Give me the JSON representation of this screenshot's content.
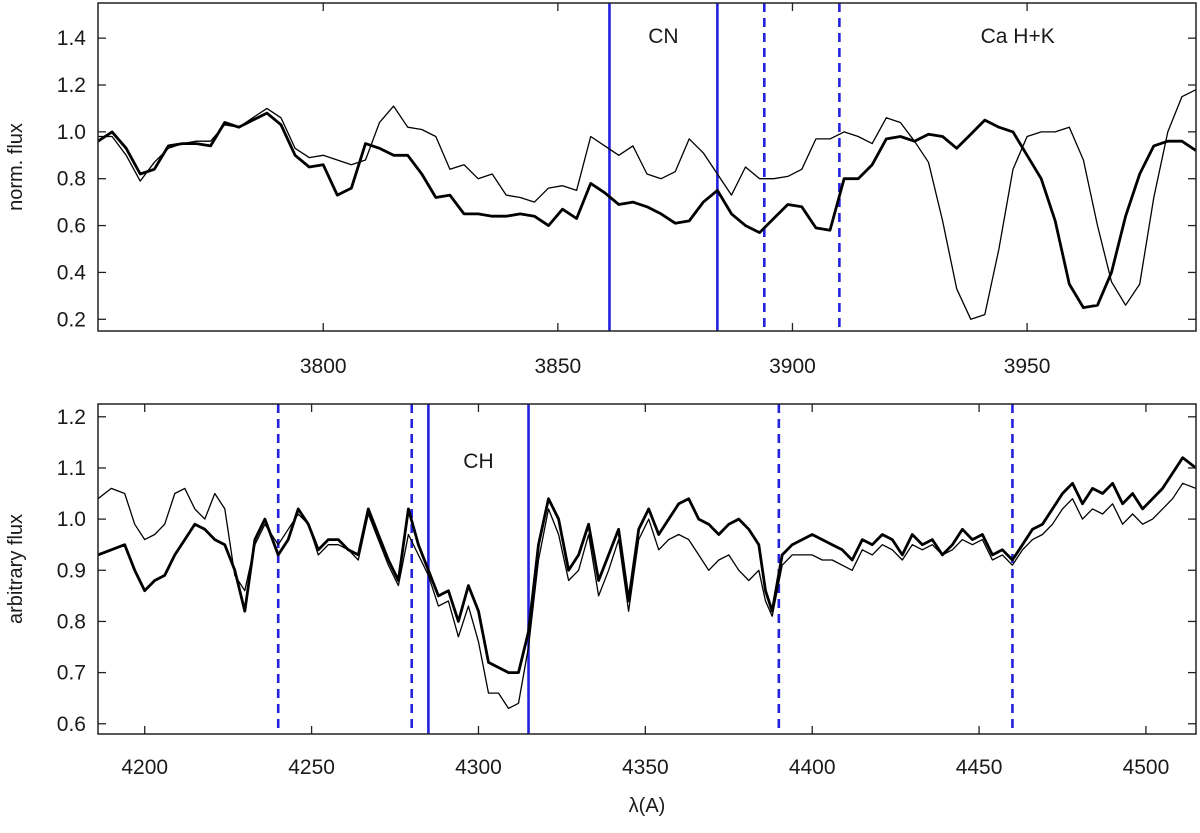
{
  "chart_data": [
    {
      "type": "line",
      "ylabel": "norm. flux",
      "xlabel": "",
      "xlim": [
        3752,
        3986
      ],
      "ylim": [
        0.15,
        1.55
      ],
      "xticks": [
        3800,
        3850,
        3900,
        3950
      ],
      "yticks": [
        0.2,
        0.4,
        0.6,
        0.8,
        1.0,
        1.2,
        1.4
      ],
      "ytick_labels": [
        "0.2",
        "0.4",
        "0.6",
        "0.8",
        "1.0",
        "1.2",
        "1.4"
      ],
      "grid": false,
      "band_lines": [
        {
          "x": 3861,
          "style": "solid"
        },
        {
          "x": 3884,
          "style": "solid"
        },
        {
          "x": 3894,
          "style": "dashed"
        },
        {
          "x": 3910,
          "style": "dashed"
        }
      ],
      "annotations": [
        {
          "text": "CN",
          "x": 3872.5,
          "y": 1.38
        },
        {
          "text": "Ca H+K",
          "x": 3948,
          "y": 1.38
        }
      ],
      "series": [
        {
          "style": "thick",
          "x": [
            3752,
            3755,
            3758,
            3761,
            3764,
            3767,
            3770,
            3773,
            3776,
            3779,
            3782,
            3785,
            3788,
            3791,
            3794,
            3797,
            3800,
            3803,
            3806,
            3809,
            3812,
            3815,
            3818,
            3821,
            3824,
            3827,
            3830,
            3833,
            3836,
            3839,
            3842,
            3845,
            3848,
            3851,
            3854,
            3857,
            3860,
            3863,
            3866,
            3869,
            3872,
            3875,
            3878,
            3881,
            3884,
            3887,
            3890,
            3893,
            3896,
            3899,
            3902,
            3905,
            3908,
            3911,
            3914,
            3917,
            3920,
            3923,
            3926,
            3929,
            3932,
            3935,
            3938,
            3941,
            3944,
            3947,
            3950,
            3953,
            3956,
            3959,
            3962,
            3965,
            3968,
            3971,
            3974,
            3977,
            3980,
            3983,
            3986
          ],
          "y": [
            0.96,
            1.0,
            0.93,
            0.82,
            0.84,
            0.94,
            0.95,
            0.95,
            0.94,
            1.04,
            1.02,
            1.05,
            1.08,
            1.03,
            0.9,
            0.85,
            0.86,
            0.73,
            0.76,
            0.95,
            0.93,
            0.9,
            0.9,
            0.82,
            0.72,
            0.73,
            0.65,
            0.65,
            0.64,
            0.64,
            0.65,
            0.64,
            0.6,
            0.67,
            0.63,
            0.78,
            0.74,
            0.69,
            0.7,
            0.68,
            0.65,
            0.61,
            0.62,
            0.7,
            0.75,
            0.65,
            0.6,
            0.57,
            0.63,
            0.69,
            0.68,
            0.59,
            0.58,
            0.8,
            0.8,
            0.86,
            0.97,
            0.98,
            0.96,
            0.99,
            0.98,
            0.93,
            0.99,
            1.05,
            1.02,
            1.0,
            0.9,
            0.8,
            0.62,
            0.35,
            0.25,
            0.26,
            0.4,
            0.64,
            0.82,
            0.94,
            0.96,
            0.96,
            0.92
          ],
          "x_fix_note": ""
        },
        {
          "style": "thin",
          "x": [
            3752,
            3755,
            3758,
            3761,
            3764,
            3767,
            3770,
            3773,
            3776,
            3779,
            3782,
            3785,
            3788,
            3791,
            3794,
            3797,
            3800,
            3803,
            3806,
            3809,
            3812,
            3815,
            3818,
            3821,
            3824,
            3827,
            3830,
            3833,
            3836,
            3839,
            3842,
            3845,
            3848,
            3851,
            3854,
            3857,
            3860,
            3863,
            3866,
            3869,
            3872,
            3875,
            3878,
            3881,
            3884,
            3887,
            3890,
            3893,
            3896,
            3899,
            3902,
            3905,
            3908,
            3911,
            3914,
            3917,
            3920,
            3923,
            3926,
            3929,
            3932,
            3935,
            3938,
            3941,
            3944,
            3947,
            3950,
            3953,
            3956,
            3959,
            3962,
            3965,
            3968,
            3971,
            3974,
            3977,
            3980,
            3983,
            3986
          ],
          "y": [
            0.98,
            0.98,
            0.9,
            0.79,
            0.87,
            0.93,
            0.95,
            0.96,
            0.96,
            1.03,
            1.02,
            1.06,
            1.1,
            1.06,
            0.93,
            0.89,
            0.9,
            0.88,
            0.86,
            0.88,
            1.04,
            1.11,
            1.02,
            1.01,
            0.98,
            0.84,
            0.86,
            0.8,
            0.82,
            0.73,
            0.72,
            0.7,
            0.76,
            0.77,
            0.75,
            0.98,
            0.94,
            0.9,
            0.94,
            0.82,
            0.8,
            0.83,
            0.97,
            0.91,
            0.82,
            0.73,
            0.85,
            0.8,
            0.8,
            0.81,
            0.84,
            0.97,
            0.97,
            1.0,
            0.98,
            0.95,
            1.06,
            1.04,
            0.96,
            0.87,
            0.62,
            0.33,
            0.2,
            0.22,
            0.5,
            0.84,
            0.98,
            1.0,
            1.0,
            1.02,
            0.88,
            0.6,
            0.36,
            0.26,
            0.35,
            0.72,
            1.0,
            1.15,
            1.18
          ],
          "x_fix_note": ""
        }
      ]
    },
    {
      "type": "line",
      "ylabel": "arbitrary flux",
      "xlabel": "λ(A)",
      "xlim": [
        4186,
        4515
      ],
      "ylim": [
        0.58,
        1.225
      ],
      "xticks": [
        4200,
        4250,
        4300,
        4350,
        4400,
        4450,
        4500
      ],
      "yticks": [
        0.6,
        0.7,
        0.8,
        0.9,
        1.0,
        1.1,
        1.2
      ],
      "ytick_labels": [
        "0.6",
        "0.7",
        "0.8",
        "0.9",
        "1.0",
        "1.1",
        "1.2"
      ],
      "grid": false,
      "band_lines": [
        {
          "x": 4240,
          "style": "dashed"
        },
        {
          "x": 4280,
          "style": "dashed"
        },
        {
          "x": 4285,
          "style": "solid"
        },
        {
          "x": 4315,
          "style": "solid"
        },
        {
          "x": 4390,
          "style": "dashed"
        },
        {
          "x": 4460,
          "style": "dashed"
        }
      ],
      "annotations": [
        {
          "text": "CH",
          "x": 4300,
          "y": 1.1
        }
      ],
      "series": [
        {
          "style": "thick",
          "x": [
            4186,
            4190,
            4194,
            4197,
            4200,
            4203,
            4206,
            4209,
            4212,
            4215,
            4218,
            4221,
            4224,
            4227,
            4230,
            4233,
            4236,
            4240,
            4243,
            4246,
            4249,
            4252,
            4255,
            4258,
            4261,
            4264,
            4267,
            4270,
            4273,
            4276,
            4279,
            4282,
            4285,
            4288,
            4291,
            4294,
            4297,
            4300,
            4303,
            4306,
            4309,
            4312,
            4315,
            4318,
            4321,
            4324,
            4327,
            4330,
            4333,
            4336,
            4339,
            4342,
            4345,
            4348,
            4351,
            4354,
            4357,
            4360,
            4363,
            4366,
            4369,
            4372,
            4375,
            4378,
            4381,
            4384,
            4386,
            4388,
            4391,
            4394,
            4397,
            4400,
            4403,
            4406,
            4409,
            4412,
            4415,
            4418,
            4421,
            4424,
            4427,
            4430,
            4433,
            4436,
            4439,
            4442,
            4445,
            4448,
            4451,
            4454,
            4457,
            4460,
            4463,
            4466,
            4469,
            4472,
            4475,
            4478,
            4481,
            4484,
            4487,
            4490,
            4493,
            4496,
            4499,
            4502,
            4505,
            4508,
            4511,
            4515
          ],
          "y": [
            0.93,
            0.94,
            0.95,
            0.9,
            0.86,
            0.88,
            0.89,
            0.93,
            0.96,
            0.99,
            0.98,
            0.96,
            0.95,
            0.9,
            0.82,
            0.96,
            1.0,
            0.93,
            0.96,
            1.02,
            0.99,
            0.94,
            0.96,
            0.96,
            0.94,
            0.93,
            1.02,
            0.97,
            0.92,
            0.88,
            1.02,
            0.95,
            0.9,
            0.85,
            0.86,
            0.8,
            0.87,
            0.82,
            0.72,
            0.71,
            0.7,
            0.7,
            0.78,
            0.95,
            1.04,
            1.0,
            0.9,
            0.93,
            0.99,
            0.88,
            0.93,
            0.98,
            0.84,
            0.98,
            1.02,
            0.97,
            1.0,
            1.03,
            1.04,
            1.0,
            0.99,
            0.97,
            0.99,
            1.0,
            0.98,
            0.95,
            0.86,
            0.82,
            0.93,
            0.95,
            0.96,
            0.97,
            0.96,
            0.95,
            0.94,
            0.92,
            0.96,
            0.95,
            0.97,
            0.96,
            0.93,
            0.97,
            0.95,
            0.96,
            0.93,
            0.95,
            0.98,
            0.96,
            0.97,
            0.93,
            0.94,
            0.92,
            0.95,
            0.98,
            0.99,
            1.02,
            1.05,
            1.07,
            1.03,
            1.06,
            1.05,
            1.07,
            1.03,
            1.05,
            1.02,
            1.04,
            1.06,
            1.09,
            1.12,
            1.1
          ],
          "x_fix_note": ""
        },
        {
          "style": "thin",
          "x": [
            4186,
            4190,
            4194,
            4197,
            4200,
            4203,
            4206,
            4209,
            4212,
            4215,
            4218,
            4221,
            4224,
            4227,
            4230,
            4233,
            4236,
            4240,
            4243,
            4246,
            4249,
            4252,
            4255,
            4258,
            4261,
            4264,
            4267,
            4270,
            4273,
            4276,
            4279,
            4282,
            4285,
            4288,
            4291,
            4294,
            4297,
            4300,
            4303,
            4306,
            4309,
            4312,
            4315,
            4318,
            4321,
            4324,
            4327,
            4330,
            4333,
            4336,
            4339,
            4342,
            4345,
            4348,
            4351,
            4354,
            4357,
            4360,
            4363,
            4366,
            4369,
            4372,
            4375,
            4378,
            4381,
            4384,
            4386,
            4388,
            4391,
            4394,
            4397,
            4400,
            4403,
            4406,
            4409,
            4412,
            4415,
            4418,
            4421,
            4424,
            4427,
            4430,
            4433,
            4436,
            4439,
            4442,
            4445,
            4448,
            4451,
            4454,
            4457,
            4460,
            4463,
            4466,
            4469,
            4472,
            4475,
            4478,
            4481,
            4484,
            4487,
            4490,
            4493,
            4496,
            4499,
            4502,
            4505,
            4508,
            4511,
            4515
          ],
          "y": [
            1.04,
            1.06,
            1.05,
            0.99,
            0.96,
            0.97,
            0.99,
            1.05,
            1.06,
            1.02,
            1.0,
            1.05,
            1.02,
            0.89,
            0.86,
            0.95,
            0.99,
            0.95,
            0.98,
            1.01,
            0.99,
            0.93,
            0.95,
            0.95,
            0.94,
            0.92,
            1.01,
            0.96,
            0.91,
            0.87,
            0.97,
            0.93,
            0.89,
            0.83,
            0.84,
            0.77,
            0.83,
            0.76,
            0.66,
            0.66,
            0.63,
            0.64,
            0.75,
            0.92,
            1.02,
            0.97,
            0.88,
            0.9,
            0.97,
            0.85,
            0.9,
            0.96,
            0.82,
            0.96,
            1.0,
            0.94,
            0.96,
            0.97,
            0.96,
            0.93,
            0.9,
            0.92,
            0.93,
            0.9,
            0.88,
            0.9,
            0.84,
            0.81,
            0.91,
            0.93,
            0.93,
            0.93,
            0.92,
            0.92,
            0.91,
            0.9,
            0.94,
            0.93,
            0.95,
            0.94,
            0.92,
            0.95,
            0.94,
            0.95,
            0.93,
            0.94,
            0.96,
            0.95,
            0.96,
            0.92,
            0.93,
            0.91,
            0.94,
            0.96,
            0.97,
            0.99,
            1.02,
            1.04,
            1.0,
            1.02,
            1.01,
            1.03,
            0.99,
            1.01,
            0.99,
            1.0,
            1.02,
            1.04,
            1.07,
            1.06
          ],
          "x_fix_note": ""
        }
      ]
    }
  ],
  "colors": {
    "band_line": "#2222dd",
    "spectrum": "#000000",
    "axis": "#222222"
  }
}
